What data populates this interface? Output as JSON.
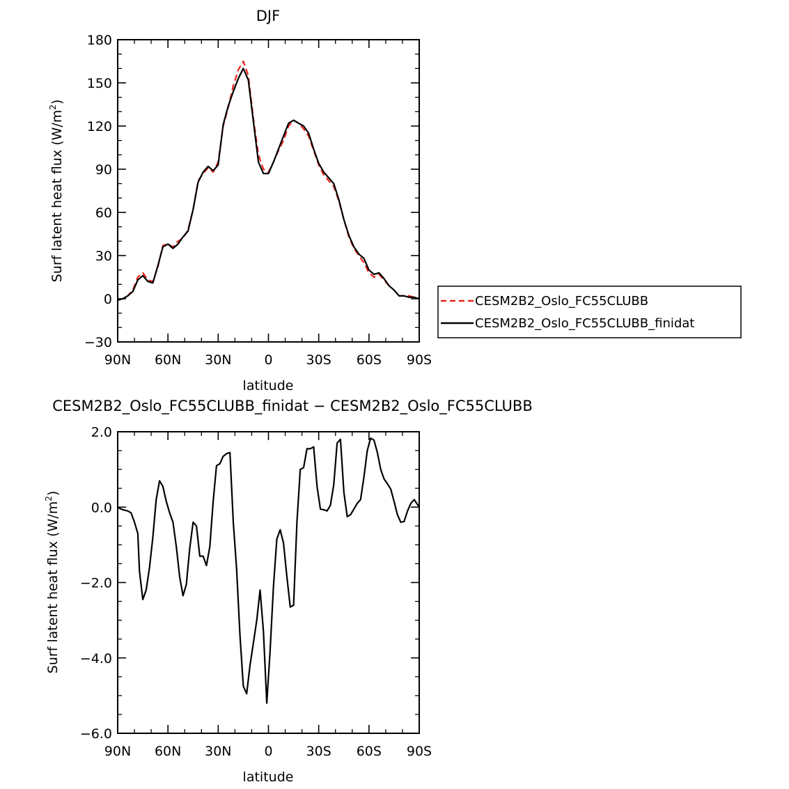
{
  "chart_data": [
    {
      "type": "line",
      "title": "DJF",
      "xlabel": "latitude",
      "ylabel": "Surf latent heat flux (W/m",
      "ylabel_sup": "2",
      "ylabel_end": ")",
      "xlim": [
        90,
        -90
      ],
      "ylim": [
        -30,
        180
      ],
      "x_ticks": [
        90,
        60,
        30,
        0,
        -30,
        -60,
        -90
      ],
      "x_tick_labels": [
        "90N",
        "60N",
        "30N",
        "0",
        "30S",
        "60S",
        "90S"
      ],
      "y_ticks": [
        -30,
        0,
        30,
        60,
        90,
        120,
        150,
        180
      ],
      "y_tick_labels": [
        "−30",
        "0",
        "30",
        "60",
        "90",
        "120",
        "150",
        "180"
      ],
      "legend_position": "right",
      "x": [
        90,
        87,
        84,
        81,
        78,
        75,
        72,
        69,
        66,
        63,
        60,
        57,
        54,
        51,
        48,
        45,
        42,
        39,
        36,
        33,
        30,
        27,
        24,
        21,
        18,
        15,
        12,
        9,
        6,
        3,
        0,
        -3,
        -6,
        -9,
        -12,
        -15,
        -18,
        -21,
        -24,
        -27,
        -30,
        -33,
        -36,
        -39,
        -42,
        -45,
        -48,
        -51,
        -54,
        -57,
        -60,
        -63,
        -66,
        -69,
        -72,
        -75,
        -78,
        -81,
        -84,
        -87,
        -90
      ],
      "series": [
        {
          "name": "CESM2B2_Oslo_FC55CLUBB",
          "color": "#e8231a",
          "dash": "dashed",
          "values": [
            -1,
            0,
            2,
            6,
            15,
            18,
            13,
            12,
            22,
            37,
            38,
            36,
            40,
            42,
            48,
            62,
            82,
            87,
            91,
            88,
            95,
            120,
            133,
            148,
            159,
            165,
            155,
            125,
            100,
            90,
            88,
            95,
            103,
            110,
            120,
            124,
            122,
            118,
            113,
            103,
            93,
            86,
            82,
            78,
            68,
            55,
            43,
            35,
            30,
            25,
            18,
            15,
            17,
            13,
            9,
            6,
            2,
            2,
            2,
            1,
            0
          ]
        },
        {
          "name": "CESM2B2_Oslo_FC55CLUBB_finidat",
          "color": "#000000",
          "dash": "solid",
          "values": [
            -1,
            0,
            2,
            5,
            13,
            16,
            12,
            11,
            23,
            36,
            38,
            35,
            38,
            43,
            47,
            62,
            81,
            88,
            92,
            89,
            93,
            121,
            134,
            144,
            153,
            160,
            152,
            123,
            95,
            87,
            87,
            95,
            104,
            113,
            122,
            124,
            122,
            120,
            115,
            104,
            94,
            88,
            84,
            80,
            69,
            55,
            44,
            36,
            31,
            28,
            20,
            17,
            18,
            14,
            9,
            6,
            2,
            2,
            1,
            1,
            0
          ]
        }
      ]
    },
    {
      "type": "line",
      "title": "CESM2B2_Oslo_FC55CLUBB_finidat − CESM2B2_Oslo_FC55CLUBB",
      "xlabel": "latitude",
      "ylabel": "Surf latent heat flux (W/m",
      "ylabel_sup": "2",
      "ylabel_end": ")",
      "xlim": [
        90,
        -90
      ],
      "ylim": [
        -6.0,
        2.0
      ],
      "x_ticks": [
        90,
        60,
        30,
        0,
        -30,
        -60,
        -90
      ],
      "x_tick_labels": [
        "90N",
        "60N",
        "30N",
        "0",
        "30S",
        "60S",
        "90S"
      ],
      "y_ticks": [
        -6,
        -4,
        -2,
        0,
        2
      ],
      "y_tick_labels": [
        "−6.0",
        "−4.0",
        "−2.0",
        "0.0",
        "2.0"
      ],
      "x": [
        90,
        88,
        86,
        84,
        82,
        80,
        78,
        77,
        75,
        73,
        71,
        69,
        67,
        65,
        63,
        61,
        59,
        57,
        55,
        53,
        51,
        49,
        47,
        45,
        43,
        41,
        39,
        37,
        35,
        33,
        31,
        29,
        27,
        25,
        23,
        21,
        19,
        17,
        15,
        13,
        11,
        9,
        7,
        5,
        3,
        1,
        -1,
        -3,
        -5,
        -7,
        -9,
        -11,
        -13,
        -15,
        -17,
        -19,
        -21,
        -23,
        -25,
        -27,
        -29,
        -31,
        -33,
        -35,
        -37,
        -39,
        -41,
        -43,
        -45,
        -47,
        -49,
        -51,
        -53,
        -55,
        -57,
        -59,
        -61,
        -63,
        -65,
        -67,
        -69,
        -71,
        -73,
        -75,
        -77,
        -79,
        -81,
        -83,
        -85,
        -87,
        -90
      ],
      "series": [
        {
          "name": "",
          "color": "#000000",
          "dash": "solid",
          "values": [
            0.0,
            -0.05,
            -0.08,
            -0.1,
            -0.15,
            -0.4,
            -0.7,
            -1.7,
            -2.45,
            -2.2,
            -1.6,
            -0.8,
            0.2,
            0.7,
            0.55,
            0.15,
            -0.15,
            -0.4,
            -1.05,
            -1.85,
            -2.35,
            -2.05,
            -1.1,
            -0.4,
            -0.5,
            -1.3,
            -1.3,
            -1.55,
            -1.05,
            0.15,
            1.1,
            1.15,
            1.35,
            1.42,
            1.45,
            -0.4,
            -1.65,
            -3.4,
            -4.75,
            -4.95,
            -4.2,
            -3.6,
            -3.0,
            -2.2,
            -3.3,
            -5.2,
            -3.8,
            -2.1,
            -0.85,
            -0.6,
            -0.95,
            -1.85,
            -2.65,
            -2.6,
            -0.4,
            1.0,
            1.05,
            1.55,
            1.55,
            1.6,
            0.55,
            -0.05,
            -0.07,
            -0.1,
            0.05,
            0.6,
            1.7,
            1.8,
            0.4,
            -0.25,
            -0.2,
            -0.05,
            0.1,
            0.2,
            0.8,
            1.5,
            1.83,
            1.78,
            1.45,
            1.0,
            0.75,
            0.62,
            0.48,
            0.15,
            -0.2,
            -0.4,
            -0.38,
            -0.1,
            0.1,
            0.2,
            0.0
          ]
        }
      ]
    }
  ]
}
